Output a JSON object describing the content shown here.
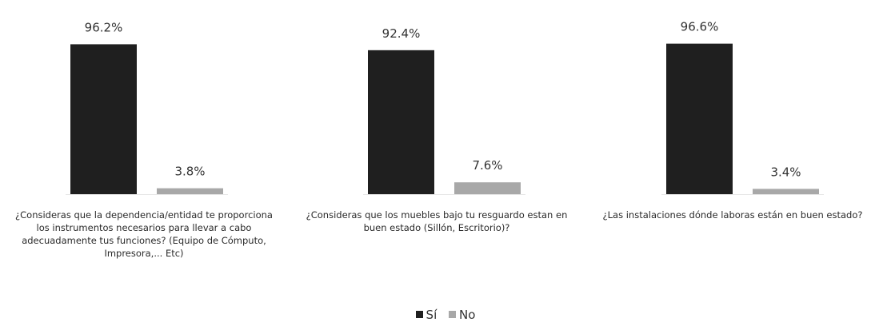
{
  "colors": {
    "si": "#1f1f1f",
    "no": "#a8a8a8"
  },
  "chart_data": {
    "type": "bar",
    "categories": [
      "¿Consideras que la dependencia/entidad te proporciona los instrumentos necesarios para llevar a cabo adecuadamente tus funciones? (Equipo de Cómputo, Impresora,... Etc)",
      "¿Consideras que los muebles bajo tu resguardo estan en buen estado (Sillón, Escritorio)?",
      "¿Las instalaciones dónde laboras están en buen estado?"
    ],
    "series": [
      {
        "name": "Sí",
        "values": [
          96.2,
          92.4,
          96.6
        ],
        "labels": [
          "96.2%",
          "92.4%",
          "96.6%"
        ]
      },
      {
        "name": "No",
        "values": [
          3.8,
          7.6,
          3.4
        ],
        "labels": [
          "3.8%",
          "7.6%",
          "3.4%"
        ]
      }
    ],
    "ylim": [
      0,
      100
    ],
    "grid": false,
    "legend_position": "bottom"
  }
}
